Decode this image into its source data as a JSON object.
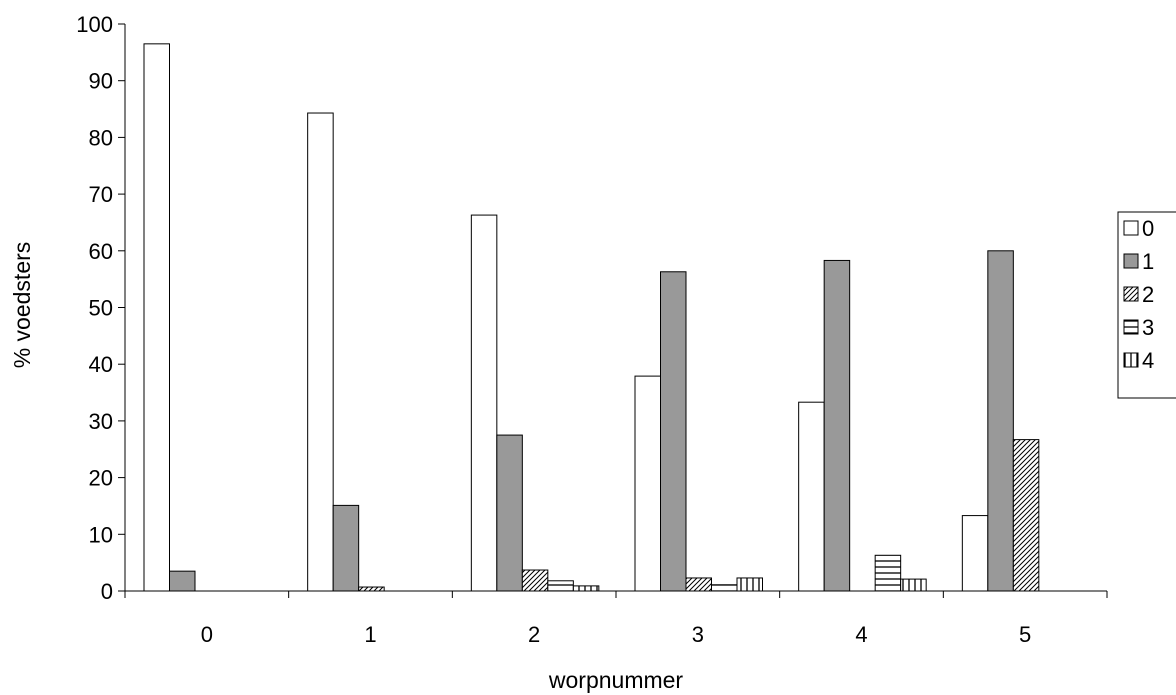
{
  "chart_data": {
    "type": "bar",
    "xlabel": "worpnummer",
    "ylabel": "% voedsters",
    "ylim": [
      0,
      100
    ],
    "ytick_step": 10,
    "categories": [
      "0",
      "1",
      "2",
      "3",
      "4",
      "5"
    ],
    "series": [
      {
        "name": "0",
        "pattern": "white",
        "values": [
          96.5,
          84.3,
          66.3,
          37.9,
          33.3,
          13.3
        ]
      },
      {
        "name": "1",
        "pattern": "gray",
        "values": [
          3.5,
          15.1,
          27.5,
          56.3,
          58.3,
          60.0
        ]
      },
      {
        "name": "2",
        "pattern": "diagonal",
        "values": [
          0,
          0.7,
          3.7,
          2.3,
          0,
          26.7
        ]
      },
      {
        "name": "3",
        "pattern": "horizontal",
        "values": [
          0,
          0,
          1.8,
          1.1,
          6.3,
          0
        ]
      },
      {
        "name": "4",
        "pattern": "vertical",
        "values": [
          0,
          0,
          0.9,
          2.3,
          2.1,
          0
        ]
      }
    ],
    "legend_position": "right",
    "grid": false,
    "colors": {
      "gray_fill": "#999999",
      "stroke": "#000000",
      "background": "#ffffff"
    }
  }
}
